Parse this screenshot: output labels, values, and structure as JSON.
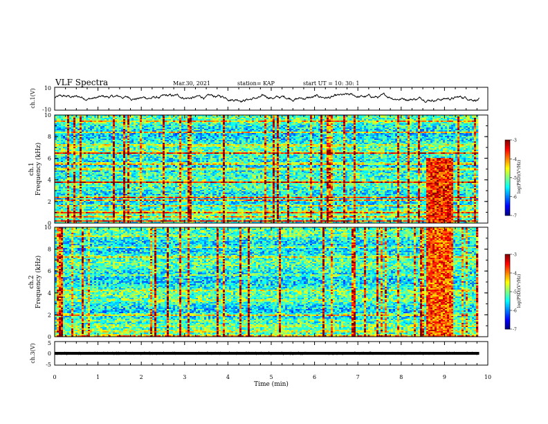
{
  "header": {
    "title": "VLF Spectra",
    "date": "Mar.30, 2021",
    "station": "station= KAP",
    "start": "start  UT =   10: 30: 1"
  },
  "chart_data": [
    {
      "type": "line",
      "panel": "ch1-waveform",
      "ylabel": "ch.1(V)",
      "ylim": [
        -10,
        10
      ],
      "y_ticks": [
        "10",
        "-10"
      ],
      "xlim": [
        0,
        10
      ],
      "series": [
        {
          "x": [
            0,
            9.8
          ],
          "y_range": [
            -4,
            6
          ],
          "description_values": [
            -1,
            1
          ]
        }
      ],
      "color": "#000000"
    },
    {
      "type": "heatmap",
      "panel": "ch1-spectrogram",
      "ylabel": "ch.1",
      "ylabel2": "Frequency (kHz)",
      "ylim": [
        0,
        10
      ],
      "y_ticks": [
        "0",
        "2",
        "4",
        "6",
        "8",
        "10"
      ],
      "xlim": [
        0,
        10
      ],
      "data_extent_x": [
        0,
        9.8
      ],
      "colorbar": {
        "label": "log(PSD)(V²/Hz)",
        "ticks": [
          "-3",
          "-4",
          "-5",
          "-6",
          "-7"
        ],
        "range": [
          -7,
          -3
        ]
      },
      "bands": [
        {
          "f": 0.2,
          "level": -3.5
        },
        {
          "f": 0.6,
          "level": -4.0
        },
        {
          "f": 1.0,
          "level": -3.2
        },
        {
          "f": 1.6,
          "level": -4.5
        },
        {
          "f": 2.1,
          "level": -3.8
        },
        {
          "f": 2.4,
          "level": -3.3
        },
        {
          "f": 3.3,
          "level": -5.5
        },
        {
          "f": 3.8,
          "level": -3.2
        },
        {
          "f": 4.6,
          "level": -5.0
        },
        {
          "f": 5.0,
          "level": -3.6
        },
        {
          "f": 5.5,
          "level": -3.4
        },
        {
          "f": 6.5,
          "level": -3.3
        },
        {
          "f": 7.2,
          "level": -4.2
        },
        {
          "f": 8.4,
          "level": -4.4
        },
        {
          "f": 9.4,
          "level": -4.0
        }
      ],
      "burst": {
        "t_start": 8.55,
        "t_end": 9.2,
        "f_max": 6.0,
        "level": -3.6
      }
    },
    {
      "type": "heatmap",
      "panel": "ch2-spectrogram",
      "ylabel": "ch.2",
      "ylabel2": "Frequency (kHz)",
      "ylim": [
        0,
        10
      ],
      "y_ticks": [
        "0",
        "2",
        "4",
        "6",
        "8",
        "10"
      ],
      "xlim": [
        0,
        10
      ],
      "data_extent_x": [
        0,
        9.8
      ],
      "colorbar": {
        "label": "log(PSD)(V²/Hz)",
        "ticks": [
          "-3",
          "-4",
          "-5",
          "-6",
          "-7"
        ],
        "range": [
          -7,
          -3
        ]
      },
      "bands": [
        {
          "f": 0.1,
          "level": -3.5
        },
        {
          "f": 0.5,
          "level": -4.2
        },
        {
          "f": 1.0,
          "level": -4.6
        },
        {
          "f": 1.5,
          "level": -4.8
        },
        {
          "f": 2.0,
          "level": -3.8
        },
        {
          "f": 3.3,
          "level": -4.6
        },
        {
          "f": 4.2,
          "level": -4.4
        },
        {
          "f": 5.6,
          "level": -4.8
        },
        {
          "f": 7.3,
          "level": -4.2
        },
        {
          "f": 8.2,
          "level": -4.6
        },
        {
          "f": 9.2,
          "level": -4.7
        }
      ],
      "burst": {
        "t_start": 8.55,
        "t_end": 9.2,
        "f_max": 10.0,
        "level": -3.8
      }
    },
    {
      "type": "line",
      "panel": "ch3-waveform",
      "ylabel": "ch.3(V)",
      "ylim": [
        -5,
        5
      ],
      "y_ticks": [
        "5",
        "0",
        "-5"
      ],
      "xlim": [
        0,
        10
      ],
      "xlabel": "Time  (min)",
      "x_ticks": [
        "0",
        "1",
        "2",
        "3",
        "4",
        "5",
        "6",
        "7",
        "8",
        "9",
        "10"
      ],
      "series": [
        {
          "x": [
            0,
            9.8
          ],
          "y_range": [
            -0.6,
            0.6
          ]
        }
      ],
      "color": "#000000"
    }
  ]
}
